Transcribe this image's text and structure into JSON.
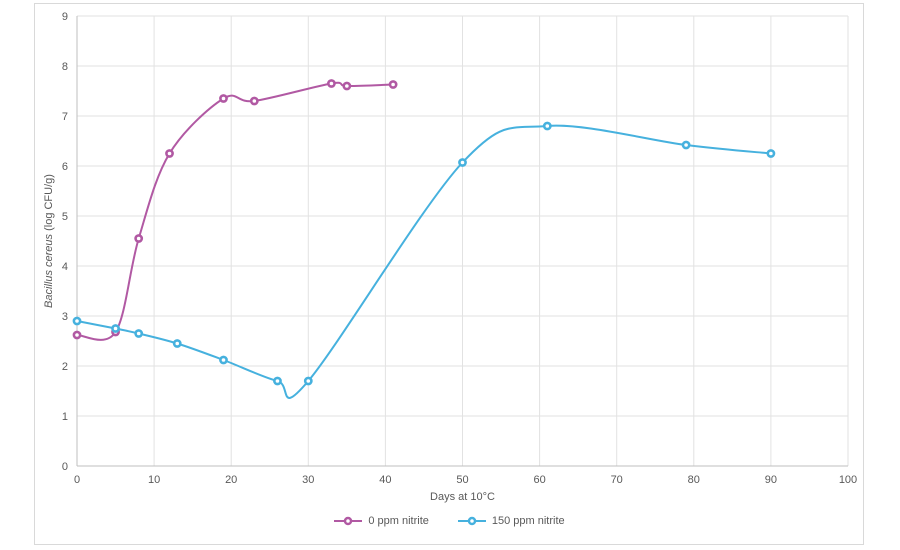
{
  "chart_data": {
    "type": "line",
    "title": "",
    "xlabel": "Days at 10°C",
    "ylabel": "Bacillus cereus (log CFU/g)",
    "ylabel_italic": "Bacillus cereus",
    "ylabel_suffix": " (log CFU/g)",
    "xlim": [
      0,
      100
    ],
    "ylim": [
      0,
      9
    ],
    "xticks": [
      0,
      10,
      20,
      30,
      40,
      50,
      60,
      70,
      80,
      90,
      100
    ],
    "yticks": [
      0,
      1,
      2,
      3,
      4,
      5,
      6,
      7,
      8,
      9
    ],
    "grid": true,
    "line_style": "smooth",
    "marker": "open-circle",
    "legend_position": "bottom-center",
    "series": [
      {
        "name": "0 ppm nitrite",
        "color": "#B159A3",
        "x": [
          0,
          5,
          8,
          12,
          19,
          23,
          33,
          35,
          41
        ],
        "y": [
          2.62,
          2.68,
          4.55,
          6.25,
          7.35,
          7.3,
          7.65,
          7.6,
          7.63
        ]
      },
      {
        "name": "150 ppm nitrite",
        "color": "#46B1DE",
        "x": [
          0,
          5,
          8,
          13,
          19,
          26,
          30,
          50,
          61,
          79,
          90
        ],
        "y": [
          2.9,
          2.75,
          2.65,
          2.45,
          2.12,
          1.7,
          1.7,
          6.07,
          6.8,
          6.42,
          6.25
        ]
      }
    ]
  },
  "style": {
    "gridline_color": "#E2E2E2",
    "axis_color": "#BFBFBF",
    "text_color": "#595959",
    "frame_border_color": "#D9D9D9",
    "background": "#FFFFFF"
  }
}
